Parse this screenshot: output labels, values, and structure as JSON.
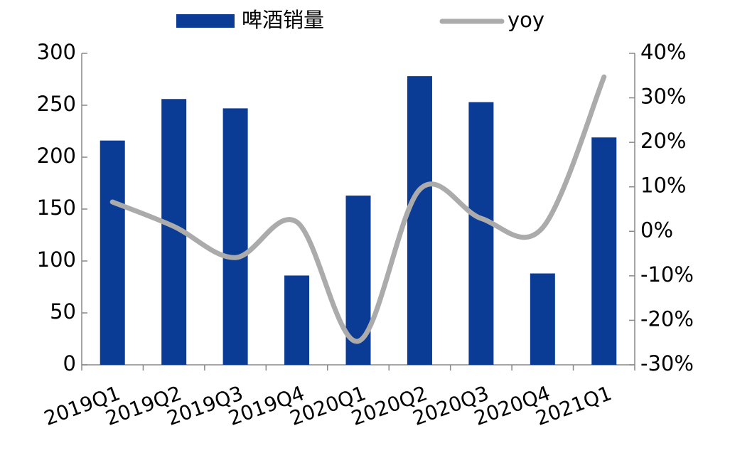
{
  "chart_data": {
    "type": "bar-line",
    "categories": [
      "2019Q1",
      "2019Q2",
      "2019Q3",
      "2019Q4",
      "2020Q1",
      "2020Q2",
      "2020Q3",
      "2020Q4",
      "2021Q1"
    ],
    "series": [
      {
        "name": "啤酒销量",
        "type": "bar",
        "color": "#0a3b95",
        "values": [
          216,
          256,
          247,
          86,
          163,
          278,
          253,
          88,
          219
        ]
      },
      {
        "name": "yoy",
        "type": "line",
        "axis": "y2",
        "color": "#ababab",
        "values": [
          6.6,
          1.1,
          -5.9,
          2.1,
          -24.7,
          9.4,
          2.9,
          0.8,
          34.7
        ]
      }
    ],
    "ylim": [
      0,
      300
    ],
    "yticks": [
      0,
      50,
      100,
      150,
      200,
      250,
      300
    ],
    "y2lim": [
      -30,
      40
    ],
    "y2ticks": [
      {
        "value": -30,
        "label": "-30%"
      },
      {
        "value": -20,
        "label": "-20%"
      },
      {
        "value": -10,
        "label": "-10%"
      },
      {
        "value": 0,
        "label": "0%"
      },
      {
        "value": 10,
        "label": "10%"
      },
      {
        "value": 20,
        "label": "20%"
      },
      {
        "value": 30,
        "label": "30%"
      },
      {
        "value": 40,
        "label": "40%"
      }
    ],
    "grid": false
  }
}
